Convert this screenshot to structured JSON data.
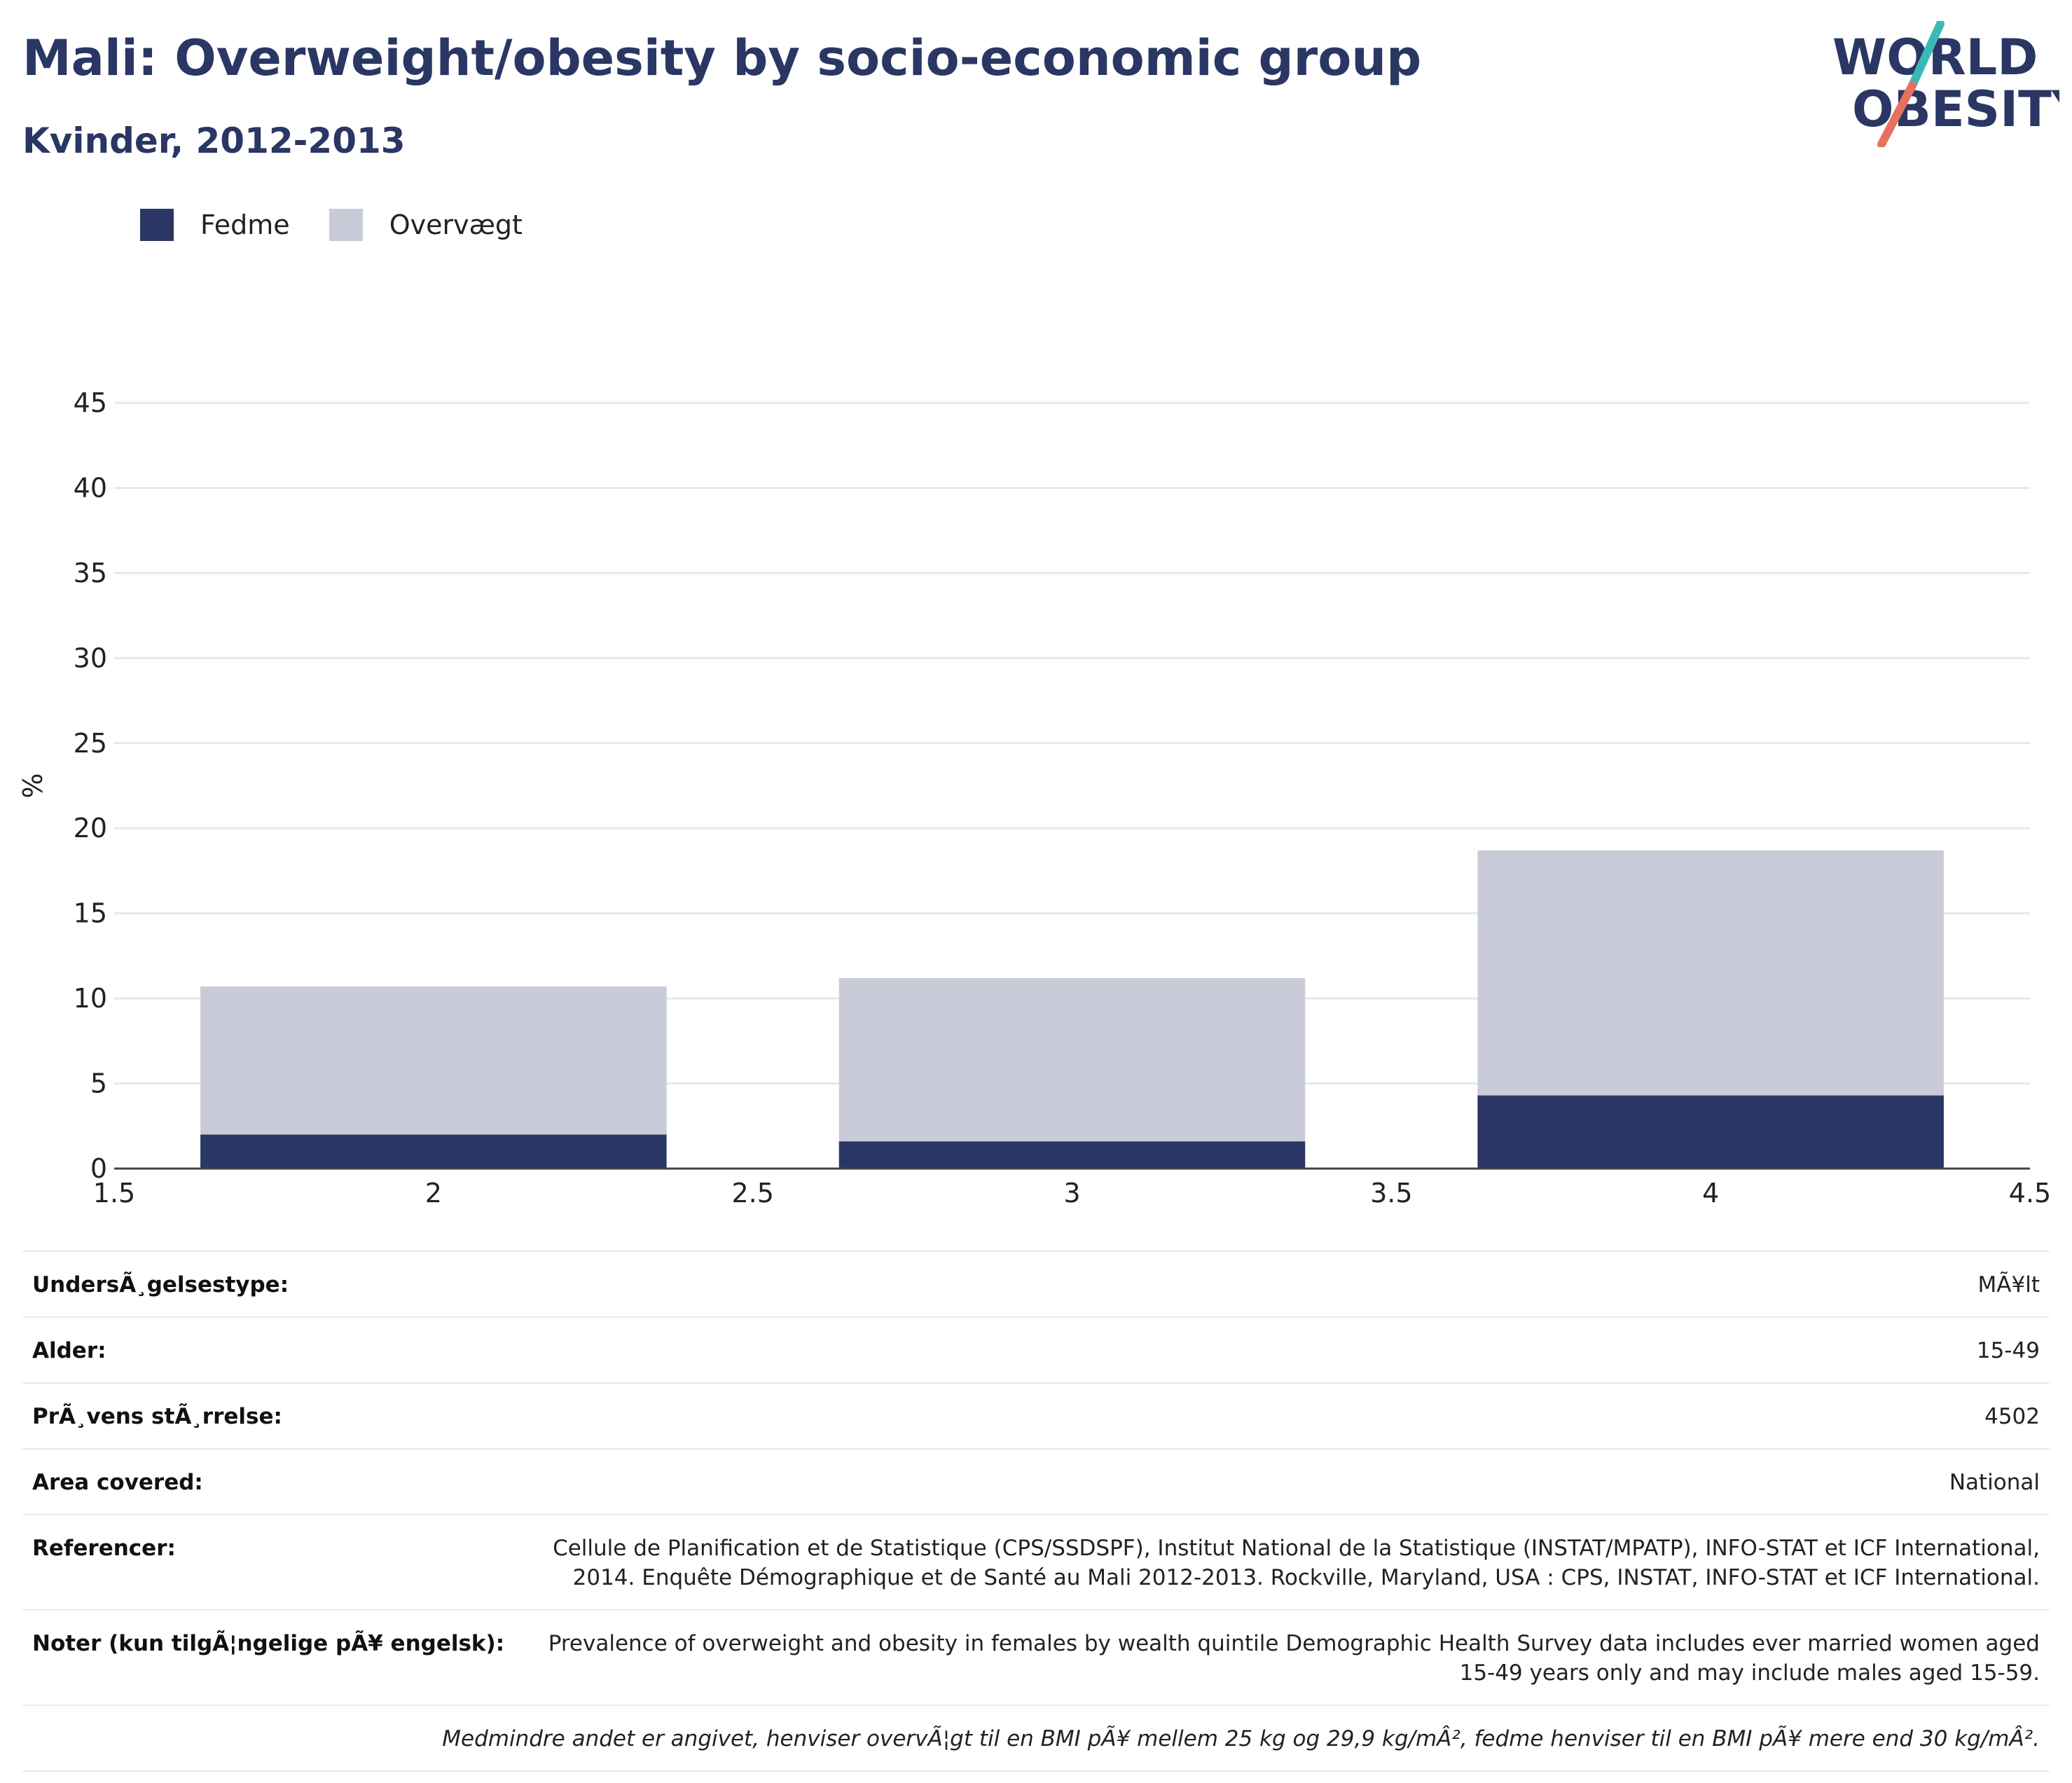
{
  "title": "Mali: Overweight/obesity by socio-economic group",
  "subtitle": "Kvinder, 2012-2013",
  "logo": {
    "line1": "WORLD",
    "line2": "OBESITY"
  },
  "colors": {
    "fedme": "#2a3663",
    "overvaegt": "#c9ccd8",
    "title": "#2a3663",
    "grid": "#e6e8ee",
    "logo_teal": "#3bb8b8",
    "logo_coral": "#e8705f"
  },
  "legend": [
    {
      "label": "Fedme",
      "color": "#2a3663"
    },
    {
      "label": "Overvægt",
      "color": "#c9ccd8"
    }
  ],
  "chart_data": {
    "type": "bar",
    "stacked": true,
    "x": [
      2,
      3,
      4
    ],
    "bar_width": 0.73,
    "series": [
      {
        "name": "Fedme",
        "values": [
          2.0,
          1.6,
          4.3
        ],
        "color": "#2a3663"
      },
      {
        "name": "Overvægt",
        "values": [
          8.7,
          9.6,
          14.4
        ],
        "color": "#c9ccd8"
      }
    ],
    "xlim": [
      1.5,
      4.5
    ],
    "xticks": [
      "1.5",
      "2",
      "2.5",
      "3",
      "3.5",
      "4",
      "4.5"
    ],
    "ylim": [
      0,
      45
    ],
    "yticks": [
      "0",
      "5",
      "10",
      "15",
      "20",
      "25",
      "30",
      "35",
      "40",
      "45"
    ],
    "ylabel": "%",
    "xlabel": "",
    "grid": true,
    "legend_position": "top-left"
  },
  "meta": [
    {
      "label": "UndersÃ¸gelsestype:",
      "value": "MÃ¥lt"
    },
    {
      "label": "Alder:",
      "value": "15-49"
    },
    {
      "label": "PrÃ¸vens stÃ¸rrelse:",
      "value": "4502"
    },
    {
      "label": "Area covered:",
      "value": "National"
    },
    {
      "label": "Referencer:",
      "value": "Cellule de Planification et de Statistique (CPS/SSDSPF), Institut National de la Statistique (INSTAT/MPATP), INFO-STAT et ICF International, 2014. Enquête Démographique et de Santé au Mali 2012-2013. Rockville, Maryland, USA : CPS, INSTAT, INFO-STAT et ICF International."
    },
    {
      "label": "Noter (kun tilgÃ¦ngelige pÃ¥ engelsk):",
      "value": "Prevalence of overweight and obesity in females by wealth quintile Demographic Health Survey data includes ever married women aged 15-49 years only and may include males aged 15-59."
    }
  ],
  "footnote": "Medmindre andet er angivet, henviser overvÃ¦gt til en BMI pÃ¥ mellem 25 kg og 29,9 kg/mÂ², fedme henviser til en BMI pÃ¥ mere end 30 kg/mÂ²."
}
